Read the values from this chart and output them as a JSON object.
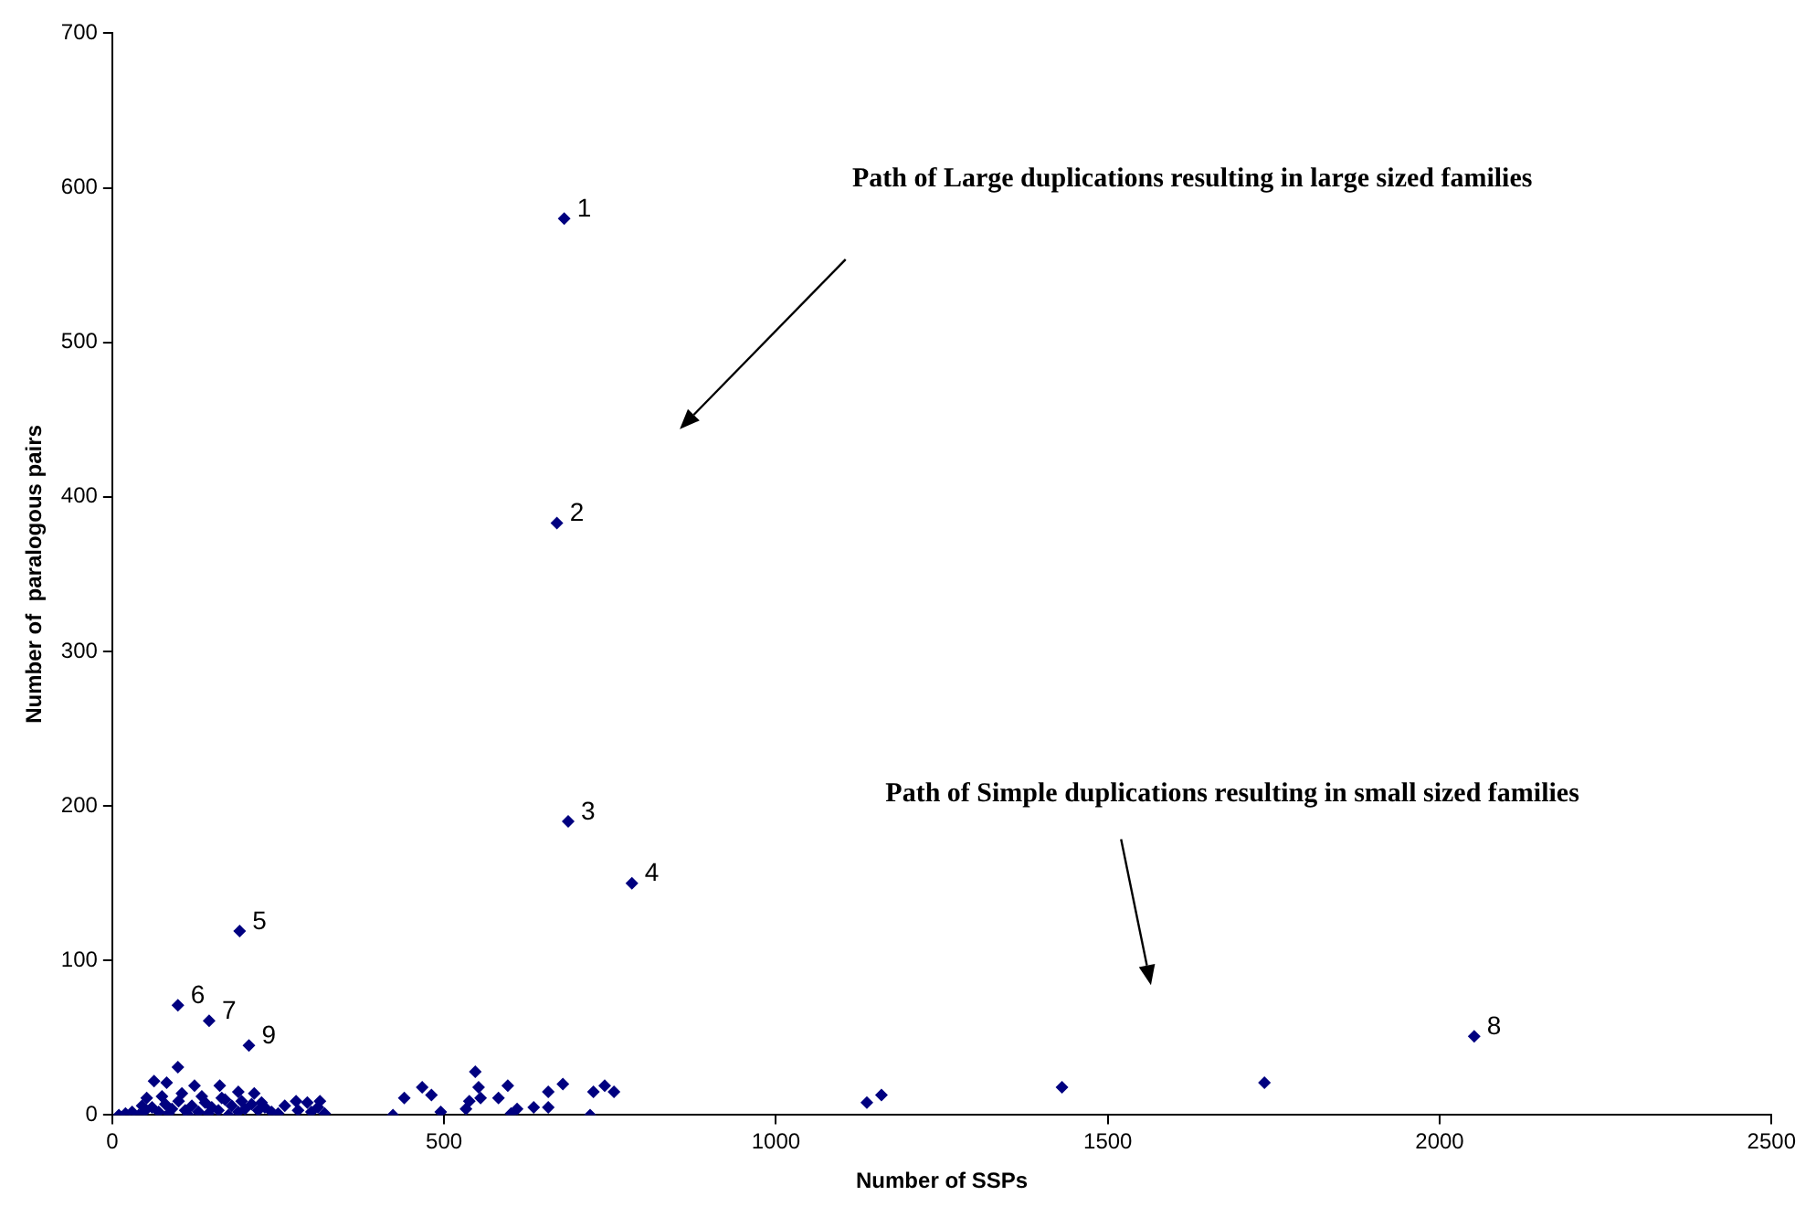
{
  "chart_data": {
    "type": "scatter",
    "xlabel": "Number of SSPs",
    "ylabel": "Number of  paralogous pairs",
    "xlim": [
      0,
      2500
    ],
    "xticks": [
      0,
      500,
      1000,
      1500,
      2000,
      2500
    ],
    "ylim": [
      0,
      700
    ],
    "yticks": [
      0,
      100,
      200,
      300,
      400,
      500,
      600,
      700
    ],
    "grid": false,
    "legend": false,
    "marker": "diamond",
    "series": [
      {
        "color": "#000080",
        "x": [
          681,
          670,
          687,
          783,
          192,
          99,
          146,
          206,
          2052,
          1137,
          1159,
          1431,
          1736,
          423,
          440,
          467,
          481,
          495,
          533,
          538,
          547,
          552,
          555,
          582,
          596,
          601,
          610,
          635,
          657,
          657,
          679,
          720,
          725,
          742,
          756,
          99,
          63,
          82,
          124,
          162,
          190,
          214,
          52,
          277,
          294,
          313,
          10,
          20,
          30,
          40,
          50,
          60,
          70,
          80,
          90,
          100,
          110,
          120,
          130,
          140,
          150,
          160,
          170,
          180,
          190,
          200,
          210,
          220,
          230,
          240,
          250,
          260,
          280,
          300,
          310,
          320,
          45,
          75,
          105,
          135,
          165,
          195,
          225,
          85,
          115,
          145,
          175
        ],
        "values": [
          580,
          383,
          190,
          150,
          119,
          71,
          61,
          45,
          51,
          8,
          13,
          18,
          21,
          0,
          11,
          18,
          13,
          2,
          4,
          9,
          28,
          18,
          11,
          11,
          19,
          1,
          4,
          5,
          15,
          5,
          20,
          0,
          15,
          19,
          15,
          31,
          22,
          21,
          19,
          19,
          15,
          14,
          11,
          9,
          8,
          9,
          0,
          1,
          2,
          0,
          3,
          5,
          2,
          7,
          4,
          9,
          3,
          6,
          2,
          8,
          5,
          3,
          10,
          6,
          2,
          4,
          7,
          3,
          5,
          2,
          1,
          6,
          3,
          2,
          5,
          1,
          6,
          12,
          14,
          12,
          11,
          9,
          8,
          1,
          0,
          1,
          0
        ]
      }
    ],
    "annotations": [
      {
        "text": "1",
        "x": 681,
        "y": 580
      },
      {
        "text": "2",
        "x": 670,
        "y": 383
      },
      {
        "text": "3",
        "x": 687,
        "y": 190
      },
      {
        "text": "4",
        "x": 783,
        "y": 150
      },
      {
        "text": "5",
        "x": 192,
        "y": 119
      },
      {
        "text": "6",
        "x": 99,
        "y": 71
      },
      {
        "text": "7",
        "x": 146,
        "y": 61
      },
      {
        "text": "8",
        "x": 2052,
        "y": 51
      },
      {
        "text": "9",
        "x": 206,
        "y": 45
      },
      "Path of Large duplications resulting in large sized families",
      "Path of Simple duplications resulting in small sized families"
    ]
  }
}
